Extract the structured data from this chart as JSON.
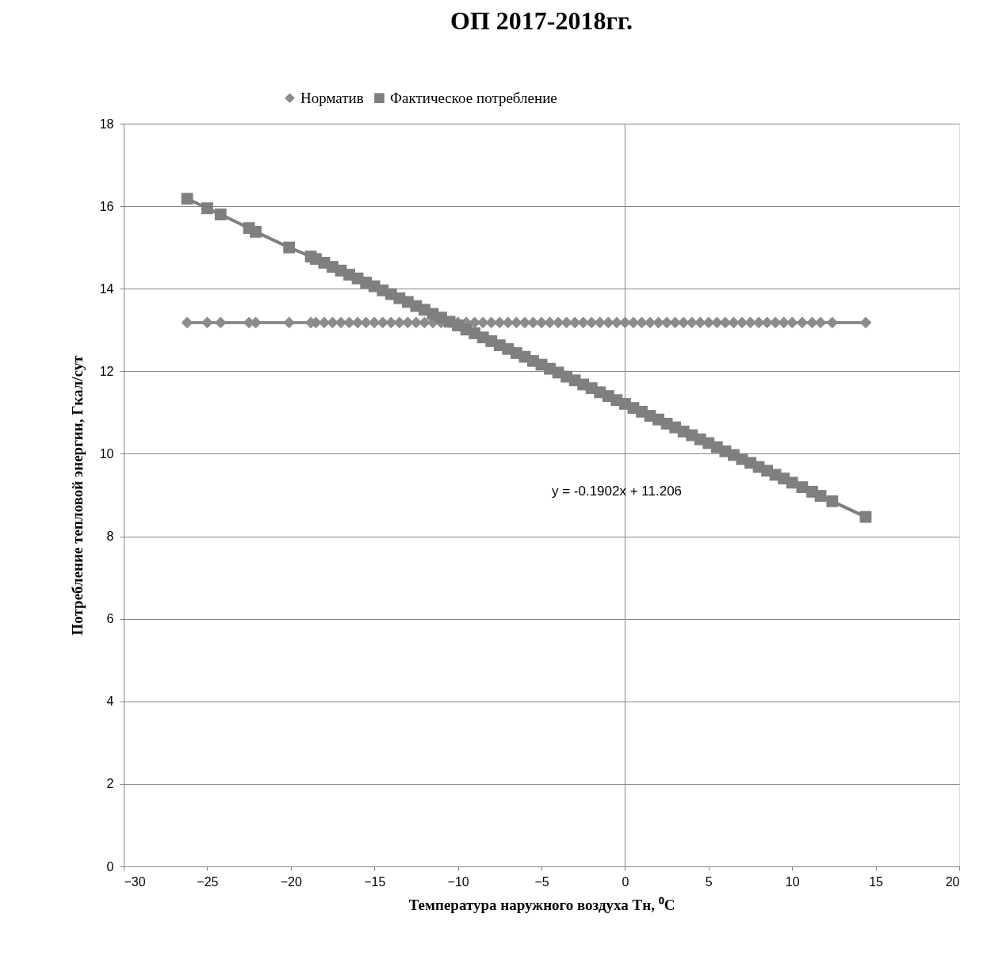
{
  "chart_data": {
    "type": "line",
    "title": "ОП 2017-2018гг.",
    "xlabel": "Температура наружного воздуха Тн, ⁰С",
    "ylabel": "Потребление тепловой энергии, Гкал/сут",
    "x": [
      -26.2,
      -25,
      -24.2,
      -22.5,
      -22.1,
      -20.1,
      -18.8,
      -18.5,
      -18,
      -17.5,
      -17,
      -16.5,
      -16,
      -15.5,
      -15,
      -14.5,
      -14,
      -13.5,
      -13,
      -12.5,
      -12,
      -11.5,
      -11,
      -10.5,
      -10,
      -9.5,
      -9,
      -8.5,
      -8,
      -7.5,
      -7,
      -6.5,
      -6,
      -5.5,
      -5,
      -4.5,
      -4,
      -3.5,
      -3,
      -2.5,
      -2,
      -1.5,
      -1,
      -0.5,
      0,
      0.5,
      1,
      1.5,
      2,
      2.5,
      3,
      3.5,
      4,
      4.5,
      5,
      5.5,
      6,
      6.5,
      7,
      7.5,
      8,
      8.5,
      9,
      9.5,
      10,
      10.6,
      11.2,
      11.7,
      12.4,
      14.4
    ],
    "series": [
      {
        "name": "Норматив",
        "color": "#8c8c8c",
        "marker": "diamond",
        "values": [
          13.18,
          13.18,
          13.18,
          13.18,
          13.18,
          13.18,
          13.18,
          13.18,
          13.18,
          13.18,
          13.18,
          13.18,
          13.18,
          13.18,
          13.18,
          13.18,
          13.18,
          13.18,
          13.18,
          13.18,
          13.18,
          13.18,
          13.18,
          13.18,
          13.18,
          13.18,
          13.18,
          13.18,
          13.18,
          13.18,
          13.18,
          13.18,
          13.18,
          13.18,
          13.18,
          13.18,
          13.18,
          13.18,
          13.18,
          13.18,
          13.18,
          13.18,
          13.18,
          13.18,
          13.18,
          13.18,
          13.18,
          13.18,
          13.18,
          13.18,
          13.18,
          13.18,
          13.18,
          13.18,
          13.18,
          13.18,
          13.18,
          13.18,
          13.18,
          13.18,
          13.18,
          13.18,
          13.18,
          13.18,
          13.18,
          13.18,
          13.18,
          13.18,
          13.18,
          13.18
        ]
      },
      {
        "name": "Фактическое потребление",
        "color": "#7f7f7f",
        "marker": "square",
        "values": [
          16.18,
          15.95,
          15.8,
          15.47,
          15.38,
          15.0,
          14.78,
          14.72,
          14.63,
          14.53,
          14.44,
          14.34,
          14.25,
          14.15,
          14.06,
          13.96,
          13.87,
          13.77,
          13.68,
          13.58,
          13.49,
          13.39,
          13.3,
          13.2,
          13.11,
          13.01,
          12.92,
          12.82,
          12.73,
          12.63,
          12.54,
          12.44,
          12.35,
          12.25,
          12.16,
          12.06,
          11.97,
          11.87,
          11.78,
          11.68,
          11.59,
          11.49,
          11.4,
          11.3,
          11.21,
          11.11,
          11.02,
          10.92,
          10.83,
          10.73,
          10.64,
          10.54,
          10.45,
          10.35,
          10.26,
          10.16,
          10.06,
          9.97,
          9.87,
          9.78,
          9.68,
          9.59,
          9.49,
          9.4,
          9.3,
          9.19,
          9.08,
          8.98,
          8.85,
          8.47
        ]
      }
    ],
    "xlim": [
      -30,
      20
    ],
    "xticks": [
      -30,
      -25,
      -20,
      -15,
      -10,
      -5,
      0,
      5,
      10,
      15,
      20
    ],
    "ylim": [
      0,
      18
    ],
    "yticks": [
      0,
      2,
      4,
      6,
      8,
      10,
      12,
      14,
      16,
      18
    ],
    "grid": "y",
    "legend": "top",
    "ref_lines": [
      {
        "axis": "x",
        "value": 0,
        "color": "#868686"
      }
    ],
    "annotations": [
      "y = -0.1902x + 11.206"
    ]
  }
}
